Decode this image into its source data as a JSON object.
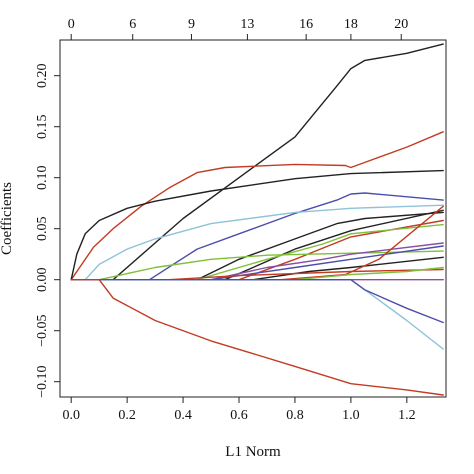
{
  "chart_data": {
    "type": "line",
    "title": "",
    "xlabel": "L1 Norm",
    "ylabel": "Coefficients",
    "xlim": [
      -0.04,
      1.34
    ],
    "ylim": [
      -0.115,
      0.235
    ],
    "x_ticks": [
      0.0,
      0.2,
      0.4,
      0.6,
      0.8,
      1.0,
      1.2
    ],
    "x_tick_labels": [
      "0.0",
      "0.2",
      "0.4",
      "0.6",
      "0.8",
      "1.0",
      "1.2"
    ],
    "y_ticks": [
      -0.1,
      -0.05,
      0.0,
      0.05,
      0.1,
      0.15,
      0.2
    ],
    "y_tick_labels": [
      "−0.10",
      "−0.05",
      "0.00",
      "0.05",
      "0.10",
      "0.15",
      "0.20"
    ],
    "top_axis": {
      "ticks": [
        0.0,
        0.22,
        0.43,
        0.63,
        0.84,
        1.0,
        1.18
      ],
      "labels": [
        "0",
        "6",
        "9",
        "13",
        "16",
        "18",
        "20"
      ]
    },
    "grid": false,
    "series": [
      {
        "color": "#222222",
        "points": [
          [
            0,
            0
          ],
          [
            0.15,
            0
          ],
          [
            0.4,
            0.06
          ],
          [
            0.6,
            0.1
          ],
          [
            0.8,
            0.14
          ],
          [
            0.95,
            0.19
          ],
          [
            1.0,
            0.207
          ],
          [
            1.05,
            0.215
          ],
          [
            1.2,
            0.222
          ],
          [
            1.33,
            0.231
          ]
        ]
      },
      {
        "color": "#c23b22",
        "points": [
          [
            0,
            0
          ],
          [
            0.03,
            0.012
          ],
          [
            0.08,
            0.032
          ],
          [
            0.15,
            0.05
          ],
          [
            0.25,
            0.072
          ],
          [
            0.35,
            0.09
          ],
          [
            0.45,
            0.105
          ],
          [
            0.55,
            0.11
          ],
          [
            0.8,
            0.113
          ],
          [
            0.98,
            0.112
          ],
          [
            1.0,
            0.11
          ],
          [
            1.05,
            0.115
          ],
          [
            1.2,
            0.13
          ],
          [
            1.33,
            0.145
          ]
        ]
      },
      {
        "color": "#222222",
        "points": [
          [
            0,
            0
          ],
          [
            0.02,
            0.025
          ],
          [
            0.05,
            0.045
          ],
          [
            0.1,
            0.058
          ],
          [
            0.2,
            0.07
          ],
          [
            0.3,
            0.077
          ],
          [
            0.5,
            0.087
          ],
          [
            0.8,
            0.099
          ],
          [
            1.0,
            0.104
          ],
          [
            1.33,
            0.107
          ]
        ]
      },
      {
        "color": "#4b4eac",
        "points": [
          [
            0,
            0
          ],
          [
            0.28,
            0
          ],
          [
            0.45,
            0.03
          ],
          [
            0.6,
            0.045
          ],
          [
            0.8,
            0.065
          ],
          [
            0.95,
            0.078
          ],
          [
            1.0,
            0.084
          ],
          [
            1.05,
            0.085
          ],
          [
            1.33,
            0.078
          ]
        ]
      },
      {
        "color": "#8ec3d8",
        "points": [
          [
            0,
            0
          ],
          [
            0.05,
            0
          ],
          [
            0.1,
            0.015
          ],
          [
            0.2,
            0.03
          ],
          [
            0.3,
            0.04
          ],
          [
            0.5,
            0.055
          ],
          [
            0.8,
            0.066
          ],
          [
            1.0,
            0.07
          ],
          [
            1.33,
            0.073
          ]
        ]
      },
      {
        "color": "#222222",
        "points": [
          [
            0,
            0
          ],
          [
            0.45,
            0
          ],
          [
            0.6,
            0.02
          ],
          [
            0.8,
            0.04
          ],
          [
            0.95,
            0.055
          ],
          [
            1.05,
            0.06
          ],
          [
            1.33,
            0.066
          ]
        ]
      },
      {
        "color": "#222222",
        "points": [
          [
            0,
            0
          ],
          [
            0.55,
            0
          ],
          [
            0.8,
            0.03
          ],
          [
            1.0,
            0.048
          ],
          [
            1.33,
            0.068
          ]
        ]
      },
      {
        "color": "#c23b22",
        "points": [
          [
            0,
            0
          ],
          [
            0.6,
            0
          ],
          [
            0.8,
            0.02
          ],
          [
            1.0,
            0.042
          ],
          [
            1.33,
            0.058
          ]
        ]
      },
      {
        "color": "#7fbf3a",
        "points": [
          [
            0,
            0
          ],
          [
            0.45,
            0
          ],
          [
            0.7,
            0.02
          ],
          [
            0.9,
            0.035
          ],
          [
            1.0,
            0.045
          ],
          [
            1.33,
            0.054
          ]
        ]
      },
      {
        "color": "#7fbf3a",
        "points": [
          [
            0,
            0
          ],
          [
            0.1,
            0
          ],
          [
            0.3,
            0.012
          ],
          [
            0.5,
            0.02
          ],
          [
            0.7,
            0.024
          ],
          [
            1.0,
            0.026
          ],
          [
            1.33,
            0.028
          ]
        ]
      },
      {
        "color": "#8a4fa0",
        "points": [
          [
            0,
            0
          ],
          [
            0.5,
            0
          ],
          [
            0.7,
            0.012
          ],
          [
            0.9,
            0.02
          ],
          [
            1.0,
            0.025
          ],
          [
            1.33,
            0.036
          ]
        ]
      },
      {
        "color": "#4b4eac",
        "points": [
          [
            0,
            0
          ],
          [
            0.5,
            0
          ],
          [
            0.8,
            0.012
          ],
          [
            1.0,
            0.02
          ],
          [
            1.33,
            0.033
          ]
        ]
      },
      {
        "color": "#222222",
        "points": [
          [
            0,
            0
          ],
          [
            0.65,
            0
          ],
          [
            0.85,
            0.008
          ],
          [
            1.0,
            0.012
          ],
          [
            1.33,
            0.022
          ]
        ]
      },
      {
        "color": "#c23b22",
        "points": [
          [
            0,
            0
          ],
          [
            0.75,
            0
          ],
          [
            0.98,
            0.005
          ],
          [
            1.1,
            0.02
          ],
          [
            1.33,
            0.072
          ]
        ]
      },
      {
        "color": "#c23b22",
        "points": [
          [
            0,
            0
          ],
          [
            0.35,
            0
          ],
          [
            0.6,
            0.004
          ],
          [
            1.0,
            0.008
          ],
          [
            1.33,
            0.01
          ]
        ]
      },
      {
        "color": "#7fbf3a",
        "points": [
          [
            0,
            0
          ],
          [
            0.8,
            0
          ],
          [
            1.0,
            0.005
          ],
          [
            1.2,
            0.008
          ],
          [
            1.33,
            0.012
          ]
        ]
      },
      {
        "color": "#8a4fa0",
        "points": [
          [
            0,
            0
          ],
          [
            1.33,
            0
          ]
        ]
      },
      {
        "color": "#8ec3d8",
        "points": [
          [
            0,
            0
          ],
          [
            1.0,
            0
          ],
          [
            1.1,
            -0.02
          ],
          [
            1.2,
            -0.04
          ],
          [
            1.33,
            -0.068
          ]
        ]
      },
      {
        "color": "#4b4eac",
        "points": [
          [
            0,
            0
          ],
          [
            1.0,
            0
          ],
          [
            1.05,
            -0.01
          ],
          [
            1.2,
            -0.028
          ],
          [
            1.33,
            -0.042
          ]
        ]
      },
      {
        "color": "#c23b22",
        "points": [
          [
            0,
            0
          ],
          [
            0.1,
            0
          ],
          [
            0.15,
            -0.018
          ],
          [
            0.3,
            -0.04
          ],
          [
            0.5,
            -0.06
          ],
          [
            0.8,
            -0.085
          ],
          [
            1.0,
            -0.102
          ],
          [
            1.2,
            -0.108
          ],
          [
            1.33,
            -0.113
          ]
        ]
      }
    ]
  }
}
